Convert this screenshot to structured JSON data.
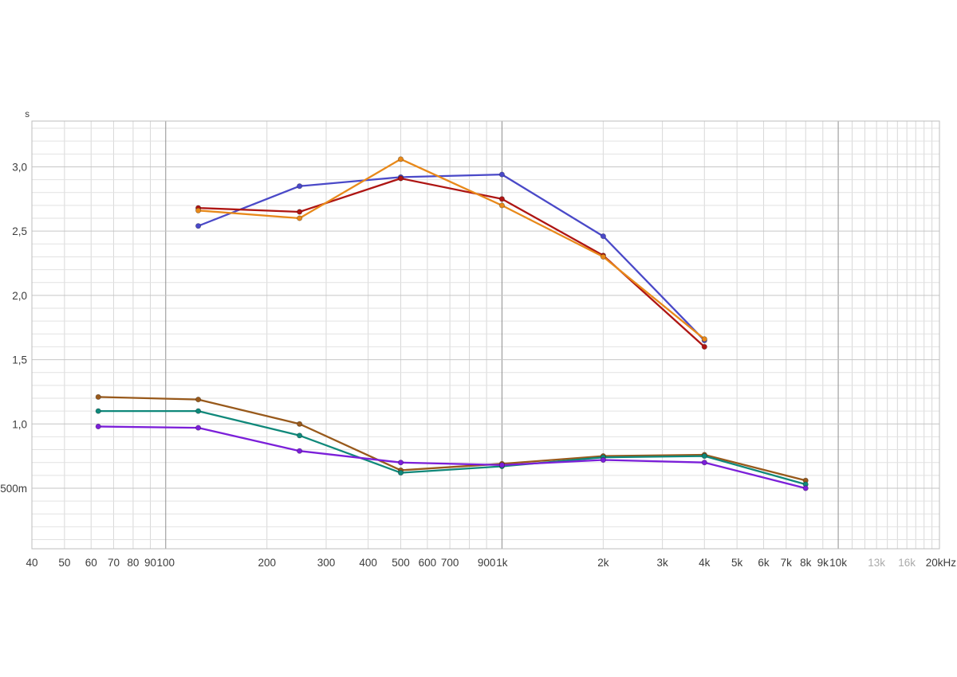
{
  "page": {
    "background": "#ffffff"
  },
  "chart_data": {
    "type": "line",
    "title": "",
    "y_unit_label": "s",
    "grid": true,
    "legend": "none",
    "border_color": "#bdbdbd",
    "tick_label_color": "#3c3c3c",
    "muted_tick_label_color": "#ababab",
    "x_axis": {
      "scale": "log",
      "min": 40,
      "max": 20000,
      "unit": "Hz",
      "minor_line_color": "#d8d8d8",
      "decade_line_color": "#8f8f8f",
      "decade_lines": [
        100,
        1000,
        10000
      ],
      "ticks": [
        {
          "label": "40",
          "f": 40
        },
        {
          "label": "50",
          "f": 50
        },
        {
          "label": "60",
          "f": 60
        },
        {
          "label": "70",
          "f": 70
        },
        {
          "label": "80",
          "f": 80
        },
        {
          "label": "90",
          "f": 90
        },
        {
          "label": "100",
          "f": 100
        },
        {
          "label": "200",
          "f": 200
        },
        {
          "label": "300",
          "f": 300
        },
        {
          "label": "400",
          "f": 400
        },
        {
          "label": "500",
          "f": 500
        },
        {
          "label": "600",
          "f": 600
        },
        {
          "label": "700",
          "f": 700
        },
        {
          "label": "900",
          "f": 900
        },
        {
          "label": "1k",
          "f": 1000
        },
        {
          "label": "2k",
          "f": 2000
        },
        {
          "label": "3k",
          "f": 3000
        },
        {
          "label": "4k",
          "f": 4000
        },
        {
          "label": "5k",
          "f": 5000
        },
        {
          "label": "6k",
          "f": 6000
        },
        {
          "label": "7k",
          "f": 7000
        },
        {
          "label": "8k",
          "f": 8000
        },
        {
          "label": "9k",
          "f": 9000
        },
        {
          "label": "10k",
          "f": 10000
        },
        {
          "label": "13k",
          "f": 13000,
          "muted": true
        },
        {
          "label": "16k",
          "f": 16000,
          "muted": true
        },
        {
          "label": "20kHz",
          "f": 20000,
          "edge": true
        }
      ]
    },
    "y_axis": {
      "scale": "linear",
      "min": 0.029,
      "max": 3.356,
      "minor_step": 0.1,
      "major_step": 0.5,
      "minor_line_color": "#e2e2e2",
      "major_line_color": "#c6c6c6",
      "ticks": [
        {
          "label": "3,0",
          "v": 3.0
        },
        {
          "label": "2,5",
          "v": 2.5
        },
        {
          "label": "2,0",
          "v": 2.0
        },
        {
          "label": "1,5",
          "v": 1.5
        },
        {
          "label": "1,0",
          "v": 1.0
        },
        {
          "label": "500m",
          "v": 0.5
        }
      ]
    },
    "series": [
      {
        "name": "upper-blue",
        "color": "#4a49c8",
        "x": [
          125,
          250,
          500,
          1000,
          2000,
          4000
        ],
        "y": [
          2.54,
          2.85,
          2.92,
          2.94,
          2.46,
          1.65
        ]
      },
      {
        "name": "upper-red",
        "color": "#ae1513",
        "x": [
          125,
          250,
          500,
          1000,
          2000,
          4000
        ],
        "y": [
          2.68,
          2.65,
          2.91,
          2.75,
          2.31,
          1.6
        ]
      },
      {
        "name": "upper-orange",
        "color": "#e8891a",
        "x": [
          125,
          250,
          500,
          1000,
          2000,
          4000
        ],
        "y": [
          2.66,
          2.6,
          3.06,
          2.7,
          2.3,
          1.66
        ]
      },
      {
        "name": "lower-brown",
        "color": "#98591b",
        "x": [
          63,
          125,
          250,
          500,
          1000,
          2000,
          4000,
          8000
        ],
        "y": [
          1.21,
          1.19,
          1.0,
          0.64,
          0.69,
          0.75,
          0.76,
          0.56
        ]
      },
      {
        "name": "lower-teal",
        "color": "#0f887a",
        "x": [
          63,
          125,
          250,
          500,
          1000,
          2000,
          4000,
          8000
        ],
        "y": [
          1.1,
          1.1,
          0.91,
          0.62,
          0.67,
          0.74,
          0.75,
          0.53
        ]
      },
      {
        "name": "lower-purple",
        "color": "#7b1fd9",
        "x": [
          63,
          125,
          250,
          500,
          1000,
          2000,
          4000,
          8000
        ],
        "y": [
          0.98,
          0.97,
          0.79,
          0.7,
          0.68,
          0.72,
          0.7,
          0.5
        ]
      }
    ]
  }
}
